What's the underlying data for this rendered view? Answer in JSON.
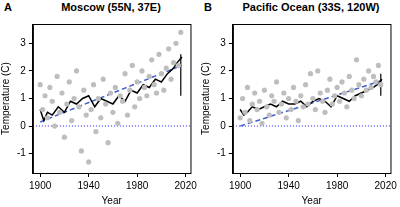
{
  "chart_data": [
    {
      "type": "scatter",
      "panel": "A",
      "title": "Moscow (55N, 37E)",
      "x_label": "Year",
      "y_label": "Temperature (C)",
      "xlim": [
        1894,
        2024
      ],
      "xticks": [
        1900,
        1940,
        1980,
        2020
      ],
      "ylim": [
        -1.7,
        3.7
      ],
      "yticks": [
        -1,
        0,
        1,
        2,
        3
      ],
      "grid": false,
      "series": [
        {
          "type": "scatter",
          "color": "#bebebe",
          "marker": "circle",
          "x": [
            1900,
            1902,
            1904,
            1906,
            1908,
            1910,
            1912,
            1914,
            1916,
            1918,
            1920,
            1922,
            1924,
            1926,
            1928,
            1930,
            1932,
            1934,
            1936,
            1938,
            1940,
            1942,
            1944,
            1946,
            1948,
            1950,
            1952,
            1954,
            1956,
            1958,
            1960,
            1962,
            1964,
            1966,
            1968,
            1970,
            1972,
            1974,
            1976,
            1978,
            1980,
            1982,
            1984,
            1986,
            1988,
            1990,
            1992,
            1994,
            1996,
            1998,
            2000,
            2002,
            2004,
            2006,
            2008,
            2010,
            2012,
            2014,
            2016
          ],
          "values": [
            1.5,
            0.6,
            1.1,
            0.3,
            1.4,
            0.9,
            0.0,
            1.8,
            0.5,
            1.2,
            -0.4,
            0.8,
            1.6,
            0.2,
            1.0,
            2.0,
            0.7,
            -0.9,
            1.3,
            0.4,
            -1.3,
            0.6,
            1.5,
            -0.2,
            1.0,
            0.3,
            1.7,
            0.8,
            -0.6,
            1.2,
            0.5,
            1.4,
            0.1,
            1.1,
            0.9,
            1.9,
            0.4,
            1.3,
            2.2,
            0.7,
            1.6,
            1.0,
            2.0,
            1.4,
            1.1,
            1.8,
            2.4,
            1.5,
            1.2,
            2.6,
            1.9,
            1.3,
            2.1,
            2.8,
            1.7,
            2.3,
            3.0,
            2.2,
            3.4
          ]
        },
        {
          "type": "line",
          "color": "#000000",
          "line_style": "solid",
          "x": [
            1900,
            1903,
            1906,
            1910,
            1915,
            1920,
            1925,
            1930,
            1935,
            1940,
            1945,
            1950,
            1955,
            1960,
            1965,
            1970,
            1975,
            1980,
            1985,
            1990,
            1995,
            2000,
            2005,
            2010,
            2013,
            2017
          ],
          "values": [
            0.6,
            0.2,
            0.5,
            0.4,
            0.7,
            0.5,
            0.9,
            0.8,
            1.0,
            1.1,
            0.7,
            1.0,
            0.9,
            0.8,
            1.1,
            0.9,
            1.3,
            1.2,
            1.5,
            1.4,
            1.7,
            1.6,
            1.9,
            2.1,
            2.3,
            2.5
          ]
        },
        {
          "type": "line",
          "color": "#3f5fcf",
          "line_style": "dashed",
          "x": [
            1900,
            2017
          ],
          "values": [
            0.15,
            2.2
          ]
        },
        {
          "type": "line",
          "color": "#6b6bff",
          "line_style": "dotted",
          "x": [
            1894,
            2024
          ],
          "values": [
            0,
            0
          ]
        }
      ],
      "error_bar": {
        "x": 2016,
        "low": 1.1,
        "high": 2.6,
        "color": "#000000"
      }
    },
    {
      "type": "scatter",
      "panel": "B",
      "title": "Pacific Ocean (33S, 120W)",
      "x_label": "Year",
      "y_label": "Temperature (C)",
      "xlim": [
        1894,
        2024
      ],
      "xticks": [
        1900,
        1940,
        1980,
        2020
      ],
      "ylim": [
        -1.7,
        3.7
      ],
      "yticks": [
        -1,
        0,
        1,
        2,
        3
      ],
      "grid": false,
      "series": [
        {
          "type": "scatter",
          "color": "#bebebe",
          "marker": "circle",
          "x": [
            1900,
            1902,
            1904,
            1906,
            1908,
            1910,
            1912,
            1914,
            1916,
            1918,
            1920,
            1922,
            1924,
            1926,
            1928,
            1930,
            1932,
            1934,
            1936,
            1938,
            1940,
            1942,
            1944,
            1946,
            1948,
            1950,
            1952,
            1954,
            1956,
            1958,
            1960,
            1962,
            1964,
            1966,
            1968,
            1970,
            1972,
            1974,
            1976,
            1978,
            1980,
            1982,
            1984,
            1986,
            1988,
            1990,
            1992,
            1994,
            1996,
            1998,
            2000,
            2002,
            2004,
            2006,
            2008,
            2010,
            2012,
            2014,
            2016
          ],
          "values": [
            0.3,
            1.0,
            0.5,
            1.4,
            0.2,
            0.8,
            1.2,
            0.6,
            0.9,
            0.1,
            1.3,
            0.7,
            0.4,
            1.1,
            0.9,
            1.6,
            0.5,
            0.8,
            1.2,
            0.3,
            1.0,
            0.6,
            1.4,
            0.9,
            0.2,
            1.1,
            0.7,
            1.5,
            0.8,
            1.9,
            1.0,
            0.6,
            2.0,
            1.2,
            0.9,
            0.5,
            1.3,
            1.7,
            0.8,
            1.1,
            1.4,
            0.9,
            1.6,
            1.2,
            0.7,
            1.8,
            1.3,
            1.0,
            2.4,
            1.5,
            1.1,
            1.7,
            1.3,
            2.0,
            1.4,
            1.8,
            1.6,
            2.2,
            1.5
          ]
        },
        {
          "type": "line",
          "color": "#000000",
          "line_style": "solid",
          "x": [
            1900,
            1903,
            1906,
            1910,
            1915,
            1920,
            1925,
            1930,
            1935,
            1940,
            1945,
            1950,
            1955,
            1960,
            1965,
            1970,
            1975,
            1980,
            1985,
            1990,
            1995,
            2000,
            2005,
            2010,
            2013,
            2017
          ],
          "values": [
            0.6,
            0.4,
            0.5,
            0.7,
            0.6,
            0.7,
            0.8,
            0.7,
            0.9,
            0.8,
            0.8,
            0.9,
            0.7,
            0.9,
            1.0,
            0.9,
            0.7,
            1.1,
            1.0,
            0.9,
            1.1,
            1.2,
            1.3,
            1.4,
            1.5,
            1.7
          ]
        },
        {
          "type": "line",
          "color": "#3f5fcf",
          "line_style": "dashed",
          "x": [
            1900,
            2017
          ],
          "values": [
            0.0,
            1.65
          ]
        },
        {
          "type": "line",
          "color": "#6b6bff",
          "line_style": "dotted",
          "x": [
            1894,
            2024
          ],
          "values": [
            0,
            0
          ]
        }
      ],
      "error_bar": {
        "x": 2016,
        "low": 1.1,
        "high": 1.9,
        "color": "#000000"
      }
    }
  ]
}
